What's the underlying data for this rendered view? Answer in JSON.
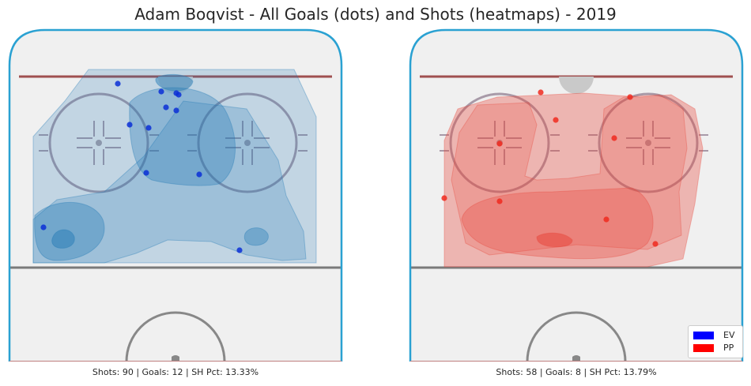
{
  "chart_data": {
    "type": "heatmap",
    "title": "Adam Boqvist - All Goals (dots) and Shots (heatmaps) - 2019",
    "legend": {
      "placement": "lower-right",
      "entries": [
        {
          "label": "EV",
          "color": "#0000ff"
        },
        {
          "label": "PP",
          "color": "#ff0000"
        }
      ]
    },
    "panels": [
      {
        "strength": "EV",
        "caption": "Shots: 90 | Goals: 12 | SH Pct: 13.33%",
        "color": "#1f77b4",
        "dot_color": "#0a2fd6"
      },
      {
        "strength": "PP",
        "caption": "Shots: 58 | Goals: 8 | SH Pct: 13.79%",
        "color": "#e8473c",
        "dot_color": "#f02a1e"
      }
    ]
  }
}
